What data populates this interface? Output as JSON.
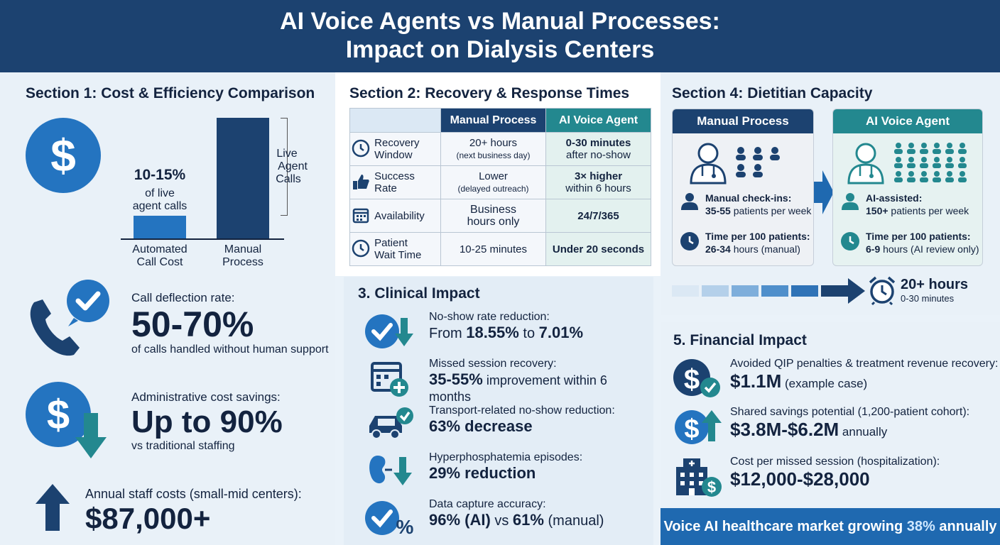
{
  "header": {
    "title_line1": "AI Voice Agents vs Manual Processes:",
    "title_line2": "Impact on Dialysis Centers"
  },
  "section1": {
    "title": "Section 1: Cost & Efficiency Comparison",
    "bar_chart": {
      "automated_value": "10-15%",
      "automated_note_line1": "of live",
      "automated_note_line2": "agent calls",
      "automated_label_line1": "Automated",
      "automated_label_line2": "Call Cost",
      "manual_label_line1": "Manual",
      "manual_label_line2": "Process",
      "bracket_line1": "Live",
      "bracket_line2": "Agent",
      "bracket_line3": "Calls"
    },
    "deflection": {
      "label": "Call deflection rate:",
      "value": "50-70%",
      "note": "of calls handled without human support"
    },
    "admin_savings": {
      "label": "Administrative cost savings:",
      "value": "Up to 90%",
      "note": "vs traditional staffing"
    },
    "staff_costs": {
      "label": "Annual staff costs (small-mid centers):",
      "value": "$87,000+"
    }
  },
  "section2": {
    "title": "Section 2: Recovery & Response Times",
    "columns": [
      "",
      "Manual Process",
      "AI Voice Agent"
    ],
    "rows": [
      {
        "label_line1": "Recovery",
        "label_line2": "Window",
        "manual_line1": "20+ hours",
        "manual_line2": "(next business day)",
        "ai_line1": "0-30 minutes",
        "ai_line2": "after no-show",
        "icon": "clock-icon"
      },
      {
        "label_line1": "Success",
        "label_line2": "Rate",
        "manual_line1": "Lower",
        "manual_line2": "(delayed outreach)",
        "ai_line1": "3× higher",
        "ai_line2": "within 6 hours",
        "icon": "thumbs-up-icon"
      },
      {
        "label_line1": "Availability",
        "label_line2": "",
        "manual_line1": "Business",
        "manual_line2": "hours only",
        "ai_line1": "24/7/365",
        "ai_line2": "",
        "icon": "calendar-icon"
      },
      {
        "label_line1": "Patient",
        "label_line2": "Wait Time",
        "manual_line1": "10-25 minutes",
        "manual_line2": "",
        "ai_line1": "Under 20 seconds",
        "ai_line2": "",
        "icon": "clock-icon"
      }
    ]
  },
  "section3": {
    "title": "3. Clinical Impact",
    "items": [
      {
        "label": "No-show rate reduction:",
        "pre": "From ",
        "v1": "18.55%",
        "mid": " to ",
        "v2": "7.01%",
        "post": ""
      },
      {
        "label": "Missed session recovery:",
        "pre": "",
        "v1": "35-55%",
        "mid": " improvement within 6 months",
        "v2": "",
        "post": ""
      },
      {
        "label": "Transport-related no-show reduction:",
        "pre": "",
        "v1": "63% decrease",
        "mid": "",
        "v2": "",
        "post": ""
      },
      {
        "label": "Hyperphosphatemia episodes:",
        "pre": "",
        "v1": "29% reduction",
        "mid": "",
        "v2": "",
        "post": ""
      },
      {
        "label": "Data capture accuracy:",
        "pre": "",
        "v1": "96% (AI)",
        "mid": " vs ",
        "v2": "61%",
        "post": " (manual)"
      }
    ]
  },
  "section4": {
    "title": "Section 4: Dietitian Capacity",
    "manual": {
      "header": "Manual Process",
      "line1_bold": "Manual check-ins:",
      "line2_bold": "35-55",
      "line2_rest": " patients per week",
      "line3_bold": "Time per 100 patients:",
      "line4_bold": "26-34",
      "line4_rest": " hours (manual)"
    },
    "ai": {
      "header": "AI Voice Agent",
      "line1_bold": "AI-assisted:",
      "line2_bold": "150+",
      "line2_rest": " patients per week",
      "line3_bold": "Time per 100 patients:",
      "line4_bold": "6-9",
      "line4_rest": " hours (AI review only)"
    },
    "timeline_big": "20+ hours",
    "timeline_small": "0-30 minutes"
  },
  "section5": {
    "title": "5. Financial Impact",
    "items": [
      {
        "label": "Avoided QIP penalties & treatment revenue recovery:",
        "value": "$1.1M",
        "unit": " (example case)"
      },
      {
        "label": "Shared savings potential (1,200-patient cohort):",
        "value": "$3.8M-$6.2M",
        "unit": " annually"
      },
      {
        "label": "Cost per missed session (hospitalization):",
        "value": "$12,000-$28,000",
        "unit": ""
      }
    ],
    "banner_pre": "Voice AI healthcare market growing ",
    "banner_value": "38%",
    "banner_post": " annually"
  },
  "colors": {
    "navy": "#1c4270",
    "blue": "#2474c0",
    "teal": "#23888f",
    "banner": "#1f69b0"
  }
}
